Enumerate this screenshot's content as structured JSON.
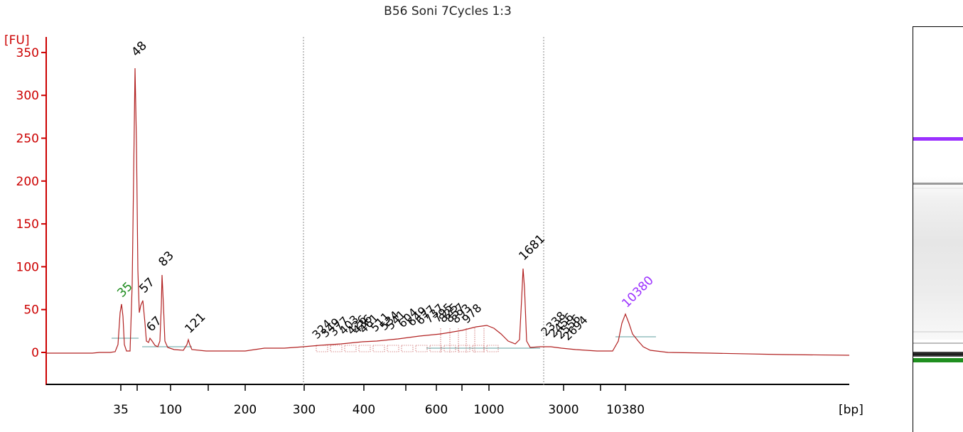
{
  "title": "B56 Soni 7Cycles 1:3",
  "chart_data": {
    "type": "line",
    "title": "B56 Soni 7Cycles 1:3",
    "ylabel": "[FU]",
    "xlabel": "[bp]",
    "ylim": [
      -35,
      365
    ],
    "yticks": [
      0,
      50,
      100,
      150,
      200,
      250,
      300,
      350
    ],
    "xticks": [
      "35",
      "100",
      "200",
      "300",
      "400",
      "600",
      "1000",
      "3000",
      "10380"
    ],
    "trace": [
      [
        35,
        57
      ],
      [
        48,
        338
      ],
      [
        57,
        62
      ],
      [
        67,
        17
      ],
      [
        83,
        93
      ],
      [
        121,
        15
      ],
      [
        200,
        5
      ],
      [
        300,
        7
      ],
      [
        400,
        14
      ],
      [
        600,
        22
      ],
      [
        1000,
        32
      ],
      [
        1681,
        100
      ],
      [
        2338,
        7
      ],
      [
        3000,
        4
      ],
      [
        10380,
        45
      ]
    ],
    "peaks": [
      {
        "label": "35",
        "bp": 35,
        "fu": 57,
        "color": "#1a8a1a",
        "marker": "lower"
      },
      {
        "label": "48",
        "bp": 48,
        "fu": 338,
        "color": "#000000"
      },
      {
        "label": "57",
        "bp": 57,
        "fu": 62,
        "color": "#000000"
      },
      {
        "label": "67",
        "bp": 67,
        "fu": 17,
        "color": "#000000"
      },
      {
        "label": "83",
        "bp": 83,
        "fu": 93,
        "color": "#000000"
      },
      {
        "label": "121",
        "bp": 121,
        "fu": 15,
        "color": "#000000"
      },
      {
        "label": "1681",
        "bp": 1681,
        "fu": 100,
        "color": "#000000"
      },
      {
        "label": "10380",
        "bp": 10380,
        "fu": 45,
        "color": "#9b30ff",
        "marker": "upper"
      }
    ],
    "smear_labels": [
      "324",
      "349",
      "377",
      "403",
      "426",
      "436",
      "461",
      "511",
      "534",
      "541",
      "604",
      "649",
      "677",
      "737",
      "795",
      "825",
      "857",
      "893",
      "978",
      "2338",
      "2456",
      "2556",
      "2694"
    ],
    "colors": {
      "trace": "#b22222",
      "axis": "#cc0000",
      "lower_marker": "#1a8a1a",
      "upper_marker": "#9b30ff"
    },
    "grid": false,
    "legend": "none"
  }
}
